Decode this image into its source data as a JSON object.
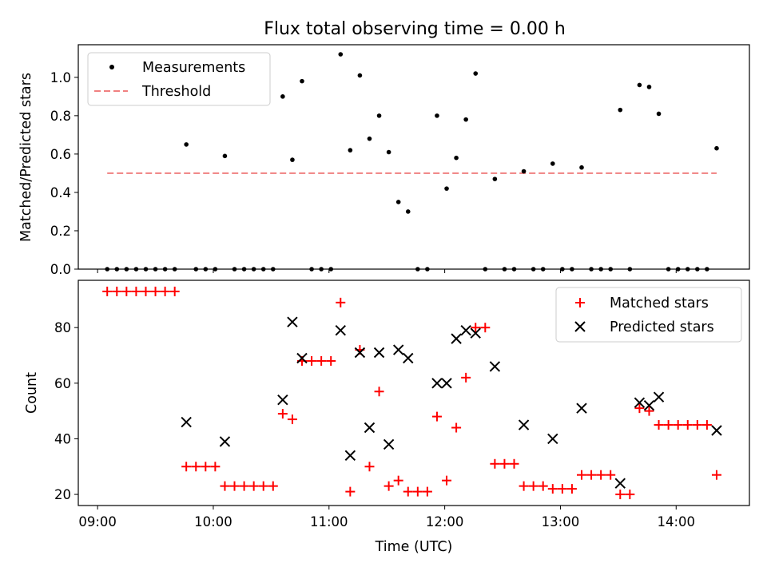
{
  "figure": {
    "title": "Flux total observing time = 0.00 h",
    "xlabel": "Time (UTC)"
  },
  "chart_data": [
    {
      "type": "scatter",
      "title": "Flux total observing time = 0.00 h",
      "xlabel": "",
      "ylabel": "Matched/Predicted stars",
      "ylim": [
        0,
        1.17
      ],
      "xlim": [
        "08:50",
        "14:38"
      ],
      "x_ticks": [
        "09:00",
        "10:00",
        "11:00",
        "12:00",
        "13:00",
        "14:00"
      ],
      "y_ticks": [
        0.0,
        0.2,
        0.4,
        0.6,
        0.8,
        1.0
      ],
      "grid": false,
      "legend_position": "top-left",
      "legend": [
        "Measurements",
        "Threshold"
      ],
      "series": [
        {
          "name": "Measurements",
          "color": "#000000",
          "marker": "dot",
          "points": [
            [
              "09:05",
              0
            ],
            [
              "09:10",
              0
            ],
            [
              "09:15",
              0
            ],
            [
              "09:20",
              0
            ],
            [
              "09:25",
              0
            ],
            [
              "09:30",
              0
            ],
            [
              "09:35",
              0
            ],
            [
              "09:40",
              0
            ],
            [
              "09:46",
              0.65
            ],
            [
              "09:51",
              0
            ],
            [
              "09:56",
              0
            ],
            [
              "10:01",
              0
            ],
            [
              "10:06",
              0.59
            ],
            [
              "10:11",
              0
            ],
            [
              "10:16",
              0
            ],
            [
              "10:21",
              0
            ],
            [
              "10:26",
              0
            ],
            [
              "10:31",
              0
            ],
            [
              "10:36",
              0.9
            ],
            [
              "10:41",
              0.57
            ],
            [
              "10:46",
              0.98
            ],
            [
              "10:51",
              0
            ],
            [
              "10:56",
              0
            ],
            [
              "11:01",
              0
            ],
            [
              "11:06",
              1.12
            ],
            [
              "11:11",
              0.62
            ],
            [
              "11:16",
              1.01
            ],
            [
              "11:21",
              0.68
            ],
            [
              "11:26",
              0.8
            ],
            [
              "11:31",
              0.61
            ],
            [
              "11:36",
              0.35
            ],
            [
              "11:41",
              0.3
            ],
            [
              "11:46",
              0
            ],
            [
              "11:51",
              0
            ],
            [
              "11:56",
              0.8
            ],
            [
              "12:01",
              0.42
            ],
            [
              "12:06",
              0.58
            ],
            [
              "12:11",
              0.78
            ],
            [
              "12:16",
              1.02
            ],
            [
              "12:21",
              0
            ],
            [
              "12:26",
              0.47
            ],
            [
              "12:31",
              0
            ],
            [
              "12:36",
              0
            ],
            [
              "12:41",
              0.51
            ],
            [
              "12:46",
              0
            ],
            [
              "12:51",
              0
            ],
            [
              "12:56",
              0.55
            ],
            [
              "13:01",
              0
            ],
            [
              "13:06",
              0
            ],
            [
              "13:11",
              0.53
            ],
            [
              "13:16",
              0
            ],
            [
              "13:21",
              0
            ],
            [
              "13:26",
              0
            ],
            [
              "13:31",
              0.83
            ],
            [
              "13:36",
              0
            ],
            [
              "13:41",
              0.96
            ],
            [
              "13:46",
              0.95
            ],
            [
              "13:51",
              0.81
            ],
            [
              "13:56",
              0
            ],
            [
              "14:01",
              0
            ],
            [
              "14:06",
              0
            ],
            [
              "14:11",
              0
            ],
            [
              "14:16",
              0
            ],
            [
              "14:21",
              0.63
            ]
          ]
        },
        {
          "name": "Threshold",
          "color": "#f08080",
          "style": "dashed",
          "points": [
            [
              "09:05",
              0.5
            ],
            [
              "14:21",
              0.5
            ]
          ]
        }
      ]
    },
    {
      "type": "scatter",
      "ylabel": "Count",
      "xlabel": "Time (UTC)",
      "ylim": [
        16,
        97
      ],
      "xlim": [
        "08:50",
        "14:38"
      ],
      "x_ticks": [
        "09:00",
        "10:00",
        "11:00",
        "12:00",
        "13:00",
        "14:00"
      ],
      "y_ticks": [
        20,
        40,
        60,
        80
      ],
      "grid": false,
      "legend_position": "top-right",
      "legend": [
        "Matched stars",
        "Predicted stars"
      ],
      "series": [
        {
          "name": "Matched stars",
          "color": "#ff0000",
          "marker": "plus",
          "points": [
            [
              "09:05",
              93
            ],
            [
              "09:10",
              93
            ],
            [
              "09:15",
              93
            ],
            [
              "09:20",
              93
            ],
            [
              "09:25",
              93
            ],
            [
              "09:30",
              93
            ],
            [
              "09:35",
              93
            ],
            [
              "09:40",
              93
            ],
            [
              "09:46",
              30
            ],
            [
              "09:51",
              30
            ],
            [
              "09:56",
              30
            ],
            [
              "10:01",
              30
            ],
            [
              "10:06",
              23
            ],
            [
              "10:11",
              23
            ],
            [
              "10:16",
              23
            ],
            [
              "10:21",
              23
            ],
            [
              "10:26",
              23
            ],
            [
              "10:31",
              23
            ],
            [
              "10:36",
              49
            ],
            [
              "10:41",
              47
            ],
            [
              "10:46",
              68
            ],
            [
              "10:51",
              68
            ],
            [
              "10:56",
              68
            ],
            [
              "11:01",
              68
            ],
            [
              "11:06",
              89
            ],
            [
              "11:11",
              21
            ],
            [
              "11:16",
              72
            ],
            [
              "11:21",
              30
            ],
            [
              "11:26",
              57
            ],
            [
              "11:31",
              23
            ],
            [
              "11:36",
              25
            ],
            [
              "11:41",
              21
            ],
            [
              "11:46",
              21
            ],
            [
              "11:51",
              21
            ],
            [
              "11:56",
              48
            ],
            [
              "12:01",
              25
            ],
            [
              "12:06",
              44
            ],
            [
              "12:11",
              62
            ],
            [
              "12:16",
              80
            ],
            [
              "12:21",
              80
            ],
            [
              "12:26",
              31
            ],
            [
              "12:31",
              31
            ],
            [
              "12:36",
              31
            ],
            [
              "12:41",
              23
            ],
            [
              "12:46",
              23
            ],
            [
              "12:51",
              23
            ],
            [
              "12:56",
              22
            ],
            [
              "13:01",
              22
            ],
            [
              "13:06",
              22
            ],
            [
              "13:11",
              27
            ],
            [
              "13:16",
              27
            ],
            [
              "13:21",
              27
            ],
            [
              "13:26",
              27
            ],
            [
              "13:31",
              20
            ],
            [
              "13:36",
              20
            ],
            [
              "13:41",
              51
            ],
            [
              "13:46",
              50
            ],
            [
              "13:51",
              45
            ],
            [
              "13:56",
              45
            ],
            [
              "14:01",
              45
            ],
            [
              "14:06",
              45
            ],
            [
              "14:11",
              45
            ],
            [
              "14:16",
              45
            ],
            [
              "14:21",
              27
            ]
          ]
        },
        {
          "name": "Predicted stars",
          "color": "#000000",
          "marker": "x",
          "points": [
            [
              "09:46",
              46
            ],
            [
              "10:06",
              39
            ],
            [
              "10:36",
              54
            ],
            [
              "10:41",
              82
            ],
            [
              "10:46",
              69
            ],
            [
              "11:06",
              79
            ],
            [
              "11:11",
              34
            ],
            [
              "11:16",
              71
            ],
            [
              "11:21",
              44
            ],
            [
              "11:26",
              71
            ],
            [
              "11:31",
              38
            ],
            [
              "11:36",
              72
            ],
            [
              "11:41",
              69
            ],
            [
              "11:56",
              60
            ],
            [
              "12:01",
              60
            ],
            [
              "12:06",
              76
            ],
            [
              "12:11",
              79
            ],
            [
              "12:16",
              78
            ],
            [
              "12:26",
              66
            ],
            [
              "12:41",
              45
            ],
            [
              "12:56",
              40
            ],
            [
              "13:11",
              51
            ],
            [
              "13:31",
              24
            ],
            [
              "13:41",
              53
            ],
            [
              "13:46",
              52
            ],
            [
              "13:51",
              55
            ],
            [
              "14:21",
              43
            ]
          ]
        }
      ]
    }
  ]
}
